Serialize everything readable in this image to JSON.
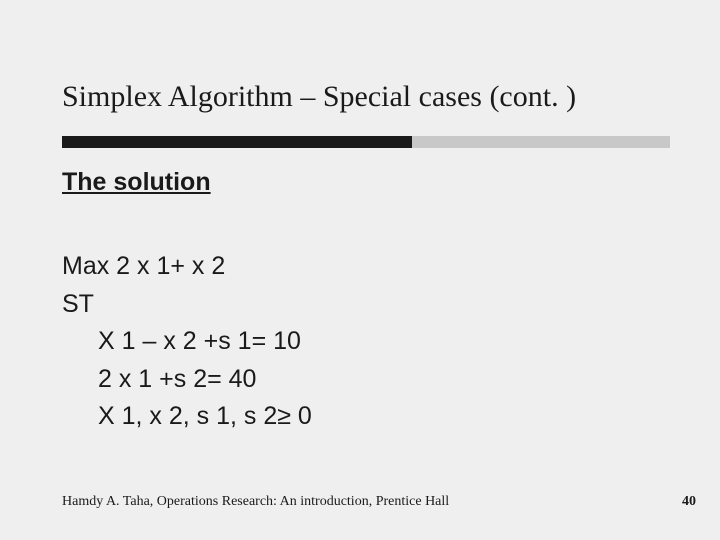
{
  "slide": {
    "title": "Simplex Algorithm – Special cases (cont. )",
    "rule": {
      "dark_color": "#1a1a1a",
      "light_color": "#c8c8c8"
    },
    "subtitle": "The solution",
    "lines": {
      "l1": "Max 2 x 1+ x 2",
      "l2": "ST",
      "l3": "X 1 – x 2 +s 1= 10",
      "l4": "2 x 1 +s 2= 40",
      "l5": "X 1, x 2, s 1, s 2≥ 0"
    },
    "footer": "Hamdy A. Taha, Operations Research: An introduction, Prentice Hall",
    "page_number": "40",
    "background_color": "#efefef",
    "text_color": "#1a1a1a",
    "title_font": "Times New Roman",
    "body_font": "Arial"
  }
}
